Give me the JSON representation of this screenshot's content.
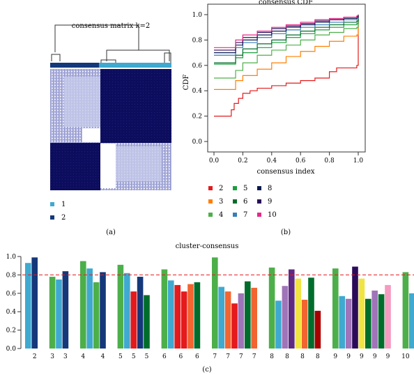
{
  "panel_labels": [
    "(a)",
    "(b)",
    "(c)"
  ],
  "colors": {
    "k2": "#e41a1c",
    "k3": "#ff7f00",
    "k4": "#4daf4a",
    "k5": "#1b9e3e",
    "k6": "#006d2c",
    "k7": "#377eb8",
    "k8": "#0a1a4f",
    "k9": "#2c0a5a",
    "k10": "#e7298a",
    "matrix_dark": "#0d0d5e",
    "matrix_light": "#a4a8d8",
    "cluster1": "#3fa9d0",
    "cluster2": "#14387a"
  },
  "chart_data": [
    {
      "type": "heatmap",
      "title": "consensus matrix k=2",
      "legend": [
        {
          "label": "1",
          "color": "#3fa9d0"
        },
        {
          "label": "2",
          "color": "#14387a"
        }
      ],
      "blocks": [
        {
          "cluster": "1",
          "fraction": 0.45
        },
        {
          "cluster": "2",
          "fraction": 0.55
        }
      ]
    },
    {
      "type": "line",
      "title": "consensus CDF",
      "xlabel": "consensus index",
      "ylabel": "CDF",
      "xlim": [
        0,
        1
      ],
      "ylim": [
        0,
        1
      ],
      "xticks": [
        "0.0",
        "0.2",
        "0.4",
        "0.6",
        "0.8",
        "1.0"
      ],
      "yticks": [
        "0.0",
        "0.2",
        "0.4",
        "0.6",
        "0.8",
        "1.0"
      ],
      "legend": [
        "2",
        "3",
        "4",
        "5",
        "6",
        "7",
        "8",
        "9",
        "10"
      ],
      "series": [
        {
          "name": "2",
          "color": "#e41a1c",
          "points": [
            [
              0,
              0.2
            ],
            [
              0.1,
              0.2
            ],
            [
              0.12,
              0.25
            ],
            [
              0.14,
              0.3
            ],
            [
              0.17,
              0.34
            ],
            [
              0.2,
              0.38
            ],
            [
              0.25,
              0.4
            ],
            [
              0.3,
              0.42
            ],
            [
              0.4,
              0.44
            ],
            [
              0.5,
              0.46
            ],
            [
              0.6,
              0.48
            ],
            [
              0.7,
              0.5
            ],
            [
              0.8,
              0.55
            ],
            [
              0.85,
              0.58
            ],
            [
              0.99,
              0.6
            ],
            [
              1,
              1
            ]
          ]
        },
        {
          "name": "3",
          "color": "#ff7f00",
          "points": [
            [
              0,
              0.41
            ],
            [
              0.1,
              0.41
            ],
            [
              0.15,
              0.48
            ],
            [
              0.2,
              0.52
            ],
            [
              0.3,
              0.57
            ],
            [
              0.4,
              0.62
            ],
            [
              0.5,
              0.67
            ],
            [
              0.6,
              0.71
            ],
            [
              0.7,
              0.75
            ],
            [
              0.8,
              0.79
            ],
            [
              0.9,
              0.83
            ],
            [
              0.99,
              0.84
            ],
            [
              1,
              1
            ]
          ]
        },
        {
          "name": "4",
          "color": "#4daf4a",
          "points": [
            [
              0,
              0.5
            ],
            [
              0.1,
              0.5
            ],
            [
              0.15,
              0.56
            ],
            [
              0.2,
              0.62
            ],
            [
              0.3,
              0.68
            ],
            [
              0.4,
              0.72
            ],
            [
              0.5,
              0.76
            ],
            [
              0.6,
              0.8
            ],
            [
              0.7,
              0.84
            ],
            [
              0.8,
              0.86
            ],
            [
              0.9,
              0.89
            ],
            [
              0.99,
              0.9
            ],
            [
              1,
              1
            ]
          ]
        },
        {
          "name": "5",
          "color": "#1b9e3e",
          "points": [
            [
              0,
              0.61
            ],
            [
              0.1,
              0.61
            ],
            [
              0.15,
              0.66
            ],
            [
              0.2,
              0.7
            ],
            [
              0.3,
              0.74
            ],
            [
              0.4,
              0.78
            ],
            [
              0.5,
              0.82
            ],
            [
              0.6,
              0.85
            ],
            [
              0.7,
              0.88
            ],
            [
              0.8,
              0.9
            ],
            [
              0.9,
              0.92
            ],
            [
              0.99,
              0.93
            ],
            [
              1,
              1
            ]
          ]
        },
        {
          "name": "6",
          "color": "#006d2c",
          "points": [
            [
              0,
              0.62
            ],
            [
              0.1,
              0.62
            ],
            [
              0.15,
              0.68
            ],
            [
              0.2,
              0.73
            ],
            [
              0.3,
              0.77
            ],
            [
              0.4,
              0.8
            ],
            [
              0.5,
              0.84
            ],
            [
              0.6,
              0.87
            ],
            [
              0.7,
              0.9
            ],
            [
              0.8,
              0.92
            ],
            [
              0.9,
              0.94
            ],
            [
              0.99,
              0.95
            ],
            [
              1,
              1
            ]
          ]
        },
        {
          "name": "7",
          "color": "#377eb8",
          "points": [
            [
              0,
              0.68
            ],
            [
              0.1,
              0.68
            ],
            [
              0.15,
              0.74
            ],
            [
              0.2,
              0.78
            ],
            [
              0.3,
              0.82
            ],
            [
              0.4,
              0.85
            ],
            [
              0.5,
              0.88
            ],
            [
              0.6,
              0.9
            ],
            [
              0.7,
              0.92
            ],
            [
              0.8,
              0.94
            ],
            [
              0.9,
              0.96
            ],
            [
              0.99,
              0.97
            ],
            [
              1,
              1
            ]
          ]
        },
        {
          "name": "8",
          "color": "#0a1a4f",
          "points": [
            [
              0,
              0.7
            ],
            [
              0.1,
              0.7
            ],
            [
              0.15,
              0.76
            ],
            [
              0.2,
              0.8
            ],
            [
              0.3,
              0.84
            ],
            [
              0.4,
              0.87
            ],
            [
              0.5,
              0.9
            ],
            [
              0.6,
              0.92
            ],
            [
              0.7,
              0.94
            ],
            [
              0.8,
              0.96
            ],
            [
              0.9,
              0.97
            ],
            [
              0.99,
              0.98
            ],
            [
              1,
              1
            ]
          ]
        },
        {
          "name": "9",
          "color": "#2c0a5a",
          "points": [
            [
              0,
              0.72
            ],
            [
              0.1,
              0.72
            ],
            [
              0.15,
              0.78
            ],
            [
              0.2,
              0.82
            ],
            [
              0.3,
              0.86
            ],
            [
              0.4,
              0.89
            ],
            [
              0.5,
              0.91
            ],
            [
              0.6,
              0.93
            ],
            [
              0.7,
              0.95
            ],
            [
              0.8,
              0.96
            ],
            [
              0.9,
              0.98
            ],
            [
              0.99,
              0.985
            ],
            [
              1,
              1
            ]
          ]
        },
        {
          "name": "10",
          "color": "#e7298a",
          "points": [
            [
              0,
              0.74
            ],
            [
              0.1,
              0.74
            ],
            [
              0.15,
              0.8
            ],
            [
              0.2,
              0.84
            ],
            [
              0.3,
              0.87
            ],
            [
              0.4,
              0.9
            ],
            [
              0.5,
              0.92
            ],
            [
              0.6,
              0.94
            ],
            [
              0.7,
              0.96
            ],
            [
              0.8,
              0.97
            ],
            [
              0.9,
              0.98
            ],
            [
              0.99,
              0.99
            ],
            [
              1,
              1
            ]
          ]
        }
      ]
    },
    {
      "type": "bar",
      "title": "cluster-consensus",
      "ylim": [
        0,
        1
      ],
      "yticks": [
        "0.0",
        "0.2",
        "0.4",
        "0.6",
        "0.8",
        "1.0"
      ],
      "reference_line": 0.8,
      "reference_color": "#e41a1c",
      "bar_colors": [
        "#4daf4a",
        "#3fa9d0",
        "#14387a",
        "#e41a1c",
        "#006d2c",
        "#f26430",
        "#a074b8",
        "#f0e442",
        "#5e2a84",
        "#a80000",
        "#f59ac0"
      ],
      "groups": [
        {
          "label": "2",
          "bars": [
            {
              "value": 0.93,
              "color": "#3fa9d0"
            },
            {
              "value": 0.99,
              "color": "#14387a"
            }
          ],
          "tick_labels": [
            "2"
          ]
        },
        {
          "label": "3",
          "bars": [
            {
              "value": 0.78,
              "color": "#4daf4a"
            },
            {
              "value": 0.75,
              "color": "#3fa9d0"
            },
            {
              "value": 0.84,
              "color": "#14387a"
            }
          ],
          "tick_labels": [
            "3",
            "3"
          ]
        },
        {
          "label": "4",
          "bars": [
            {
              "value": 0.95,
              "color": "#4daf4a"
            },
            {
              "value": 0.87,
              "color": "#3fa9d0"
            },
            {
              "value": 0.72,
              "color": "#4daf4a"
            },
            {
              "value": 0.83,
              "color": "#14387a"
            }
          ],
          "tick_labels": [
            "4",
            "4"
          ]
        },
        {
          "label": "5",
          "bars": [
            {
              "value": 0.91,
              "color": "#4daf4a"
            },
            {
              "value": 0.82,
              "color": "#3fa9d0"
            },
            {
              "value": 0.62,
              "color": "#e41a1c"
            },
            {
              "value": 0.78,
              "color": "#14387a"
            },
            {
              "value": 0.58,
              "color": "#006d2c"
            }
          ],
          "tick_labels": [
            "5",
            "5",
            "5"
          ]
        },
        {
          "label": "6",
          "bars": [
            {
              "value": 0.86,
              "color": "#4daf4a"
            },
            {
              "value": 0.74,
              "color": "#3fa9d0"
            },
            {
              "value": 0.69,
              "color": "#e41a1c"
            },
            {
              "value": 0.62,
              "color": "#e41a1c"
            },
            {
              "value": 0.7,
              "color": "#f26430"
            },
            {
              "value": 0.72,
              "color": "#006d2c"
            }
          ],
          "tick_labels": [
            "6",
            "6",
            "6"
          ]
        },
        {
          "label": "7",
          "bars": [
            {
              "value": 0.99,
              "color": "#4daf4a"
            },
            {
              "value": 0.67,
              "color": "#3fa9d0"
            },
            {
              "value": 0.62,
              "color": "#f26430"
            },
            {
              "value": 0.49,
              "color": "#e41a1c"
            },
            {
              "value": 0.6,
              "color": "#a074b8"
            },
            {
              "value": 0.73,
              "color": "#006d2c"
            },
            {
              "value": 0.66,
              "color": "#f26430"
            }
          ],
          "tick_labels": [
            "7",
            "7",
            "7",
            "7"
          ]
        },
        {
          "label": "8",
          "bars": [
            {
              "value": 0.88,
              "color": "#4daf4a"
            },
            {
              "value": 0.52,
              "color": "#3fa9d0"
            },
            {
              "value": 0.68,
              "color": "#a074b8"
            },
            {
              "value": 0.86,
              "color": "#5e2a84"
            },
            {
              "value": 0.76,
              "color": "#f0e442"
            },
            {
              "value": 0.53,
              "color": "#f26430"
            },
            {
              "value": 0.77,
              "color": "#006d2c"
            },
            {
              "value": 0.41,
              "color": "#a80000"
            }
          ],
          "tick_labels": [
            "8",
            "8",
            "8",
            "8"
          ]
        },
        {
          "label": "9",
          "bars": [
            {
              "value": 0.87,
              "color": "#4daf4a"
            },
            {
              "value": 0.57,
              "color": "#3fa9d0"
            },
            {
              "value": 0.54,
              "color": "#a074b8"
            },
            {
              "value": 0.89,
              "color": "#2c0a5a"
            },
            {
              "value": 0.76,
              "color": "#f0e442"
            },
            {
              "value": 0.54,
              "color": "#006d2c"
            },
            {
              "value": 0.63,
              "color": "#a074b8"
            },
            {
              "value": 0.59,
              "color": "#006d2c"
            },
            {
              "value": 0.69,
              "color": "#f59ac0"
            }
          ],
          "tick_labels": [
            "9",
            "9",
            "9",
            "9",
            "9"
          ]
        },
        {
          "label": "10",
          "bars": [
            {
              "value": 0.83,
              "color": "#4daf4a"
            },
            {
              "value": 0.6,
              "color": "#3fa9d0"
            },
            {
              "value": 0.58,
              "color": "#a074b8"
            },
            {
              "value": 0.58,
              "color": "#e41a1c"
            },
            {
              "value": 0.57,
              "color": "#f0e442"
            },
            {
              "value": 0.61,
              "color": "#f26430"
            },
            {
              "value": 0.53,
              "color": "#a074b8"
            },
            {
              "value": 0.68,
              "color": "#006d2c"
            },
            {
              "value": 0.61,
              "color": "#0a1a4f"
            },
            {
              "value": 0.6,
              "color": "#006d2c"
            }
          ],
          "tick_labels": [
            "10",
            "10",
            "10",
            "10"
          ]
        }
      ]
    }
  ]
}
